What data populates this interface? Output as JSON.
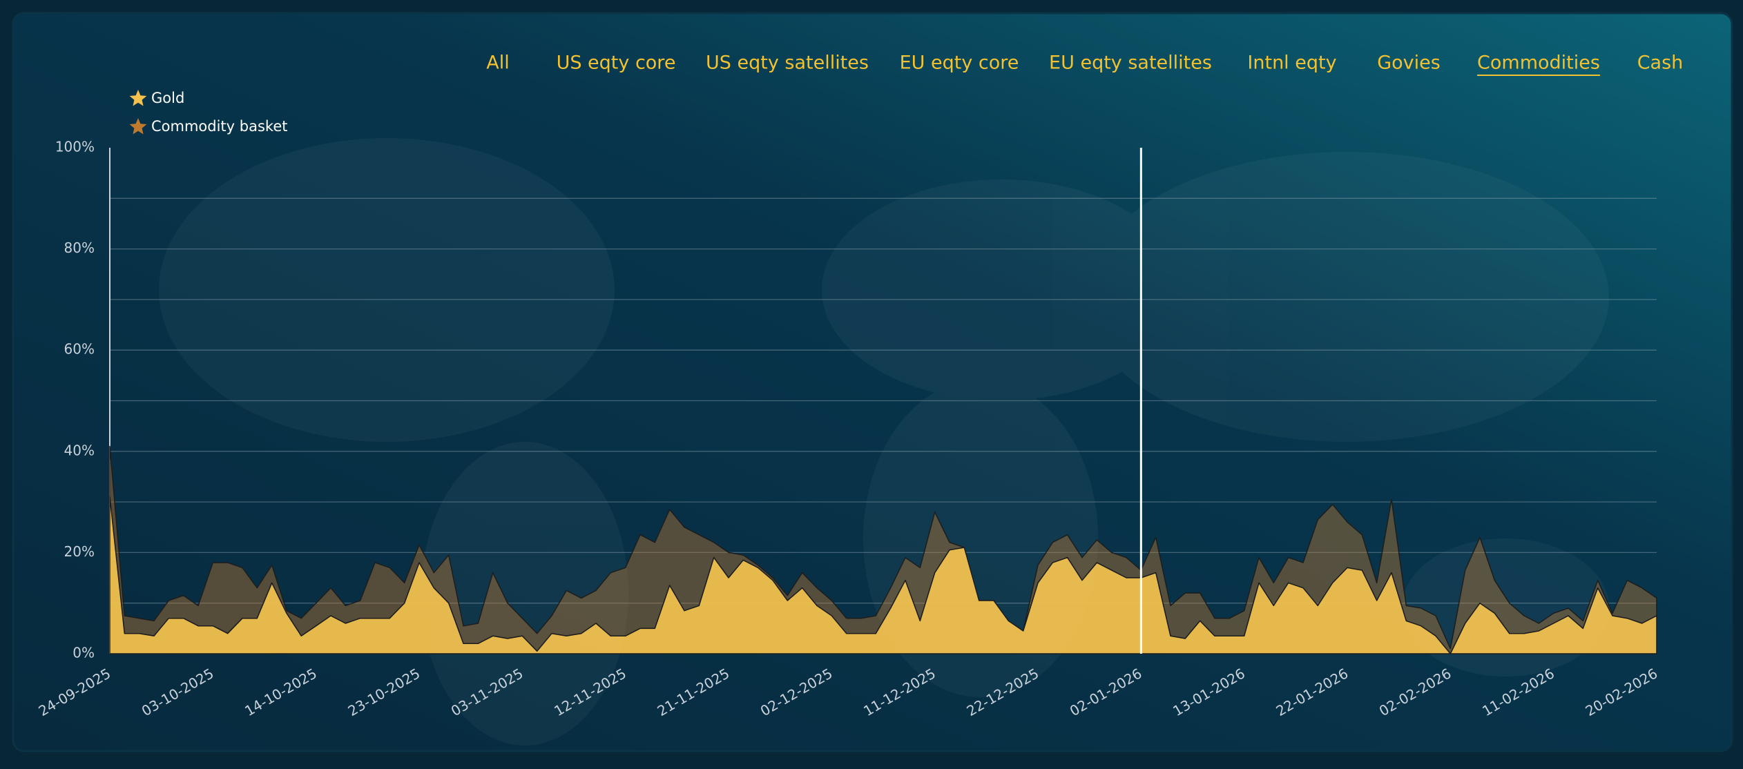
{
  "nav": {
    "items": [
      "All",
      "US eqty core",
      "US eqty satellites",
      "EU eqty core",
      "EU eqty satellites",
      "Intnl eqty",
      "Govies",
      "Commodities",
      "Cash"
    ],
    "active": 7
  },
  "chart_data": {
    "type": "stacked_area",
    "categories": [
      "24-09-2025",
      null,
      null,
      null,
      null,
      null,
      null,
      "03-10-2025",
      null,
      null,
      null,
      null,
      null,
      null,
      "14-10-2025",
      null,
      null,
      null,
      null,
      null,
      null,
      "23-10-2025",
      null,
      null,
      null,
      null,
      null,
      null,
      "03-11-2025",
      null,
      null,
      null,
      null,
      null,
      null,
      "12-11-2025",
      null,
      null,
      null,
      null,
      null,
      null,
      "21-11-2025",
      null,
      null,
      null,
      null,
      null,
      null,
      "02-12-2025",
      null,
      null,
      null,
      null,
      null,
      null,
      "11-12-2025",
      null,
      null,
      null,
      null,
      null,
      null,
      "22-12-2025",
      null,
      null,
      null,
      null,
      null,
      null,
      "02-01-2026",
      null,
      null,
      null,
      null,
      null,
      null,
      "13-01-2026",
      null,
      null,
      null,
      null,
      null,
      null,
      "22-01-2026",
      null,
      null,
      null,
      null,
      null,
      null,
      "02-02-2026",
      null,
      null,
      null,
      null,
      null,
      null,
      "11-02-2026",
      null,
      null,
      null,
      null,
      null,
      null,
      "20-02-2026"
    ],
    "series": [
      {
        "name": "Gold",
        "color": "#f2c14e",
        "values": [
          31,
          4,
          4,
          3.5,
          7,
          7,
          5.5,
          5.5,
          4,
          7,
          7,
          14,
          8,
          3.5,
          5.5,
          7.5,
          6,
          7,
          7,
          7,
          10,
          18,
          13,
          10,
          2,
          2,
          3.5,
          3,
          3.5,
          0.5,
          4,
          3.5,
          4,
          6,
          3.5,
          3.5,
          5,
          5,
          13.5,
          8.5,
          9.5,
          19,
          15,
          18.5,
          17,
          14.5,
          10.5,
          13,
          9.5,
          7.5,
          4,
          4,
          4,
          9,
          14.5,
          6.5,
          16,
          20.5,
          21,
          10.5,
          10.5,
          6.5,
          4.5,
          14,
          18,
          19,
          14.5,
          18,
          16.5,
          15,
          15,
          16,
          3.5,
          3,
          6.5,
          3.5,
          3.5,
          3.5,
          14,
          9.5,
          14,
          13,
          9.5,
          14,
          17,
          16.5,
          10.5,
          16,
          6.5,
          5.5,
          3.5,
          0,
          6,
          10,
          8,
          4,
          4,
          4.5,
          6,
          7.5,
          5,
          13,
          7.5,
          7,
          6,
          7.5
        ]
      },
      {
        "name": "Commodity basket",
        "color": "#c07a30",
        "values": [
          10,
          3.5,
          3,
          3,
          3.5,
          4.5,
          4,
          12.5,
          14,
          10,
          6,
          3.5,
          0.5,
          3.5,
          4.5,
          5.5,
          3.5,
          3.5,
          11,
          10,
          4,
          3.5,
          3,
          9.5,
          3.5,
          4,
          12.5,
          7,
          3.5,
          3.5,
          3.5,
          9,
          7,
          6.5,
          12.5,
          13.5,
          18.5,
          17,
          15,
          16.5,
          14,
          3,
          5,
          1,
          0.5,
          0.5,
          1,
          3,
          3.5,
          3,
          3,
          3,
          3.5,
          4,
          4.5,
          10.5,
          12,
          1.5,
          0,
          0,
          0,
          0,
          0,
          3.5,
          4,
          4.5,
          4.5,
          4.5,
          3.5,
          4,
          1.5,
          7,
          6,
          9,
          5.5,
          3.5,
          3.5,
          5,
          5,
          4.5,
          5,
          5,
          17,
          15.5,
          9,
          7,
          3.5,
          14.5,
          3,
          3.5,
          4,
          1,
          10.5,
          13,
          6.5,
          6,
          3.5,
          1.5,
          2,
          1.5,
          1.5,
          1.5,
          0.5,
          7.5,
          7,
          3.5
        ]
      }
    ],
    "ylim": [
      0,
      100
    ],
    "yticks": [
      {
        "value": 0,
        "label": "0%"
      },
      {
        "value": 20,
        "label": "20%"
      },
      {
        "value": 40,
        "label": "40%"
      },
      {
        "value": 60,
        "label": "60%"
      },
      {
        "value": 80,
        "label": "80%"
      },
      {
        "value": 100,
        "label": "100%"
      }
    ],
    "minor_yticks": [
      10,
      30,
      50,
      70,
      90
    ],
    "grid": true,
    "legend": "top-left"
  }
}
